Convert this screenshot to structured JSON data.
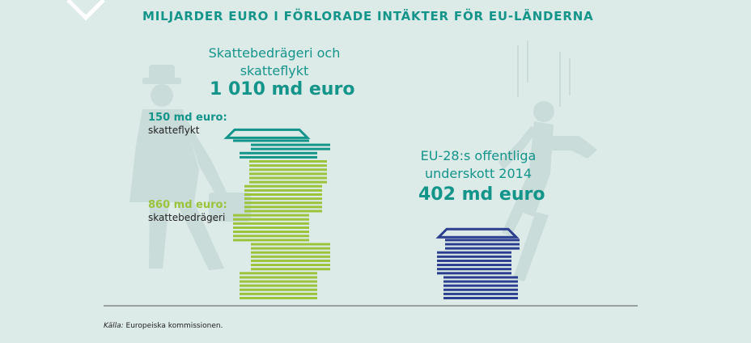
{
  "title": "MILJARDER EURO I FÖRLORADE INTÄKTER FÖR EU-LÄNDERNA",
  "source": {
    "prefix": "Källa:",
    "text": "Europeiska kommissionen."
  },
  "colors": {
    "background": "#dceae8",
    "teal": "#14958a",
    "green": "#9bc43b",
    "blue": "#2c3e8f",
    "silhouette": "#c9dcd9",
    "axis": "#555555"
  },
  "icons": [
    "man-with-hat-silhouette",
    "falling-man-silhouette",
    "corner-chevron-icon"
  ],
  "left_stack": {
    "heading_line1": "Skattebedrägeri och",
    "heading_line2": "skatteflykt",
    "total": "1 010 md euro",
    "segment_1": {
      "value_label": "150 md euro:",
      "name": "skatteflykt"
    },
    "segment_2": {
      "value_label": "860 md euro:",
      "name": "skattebedrägeri"
    }
  },
  "right_stack": {
    "heading_line1": "EU-28:s offentliga",
    "heading_line2": "underskott 2014",
    "total": "402 md euro"
  },
  "chart_data": {
    "type": "bar",
    "title": "MILJARDER EURO I FÖRLORADE INTÄKTER FÖR EU-LÄNDERNA",
    "categories": [
      "Skattebedrägeri och skatteflykt",
      "EU-28:s offentliga underskott 2014"
    ],
    "stacked": true,
    "series": [
      {
        "name": "skattebedrägeri",
        "values": [
          860,
          0
        ],
        "color": "#9bc43b"
      },
      {
        "name": "skatteflykt",
        "values": [
          150,
          0
        ],
        "color": "#14958a"
      },
      {
        "values": [
          0,
          402
        ],
        "color": "#2c3e8f"
      }
    ],
    "totals": [
      1010,
      402
    ],
    "unit": "md euro",
    "xlabel": "",
    "ylabel": "",
    "grid": false,
    "legend": "none"
  }
}
